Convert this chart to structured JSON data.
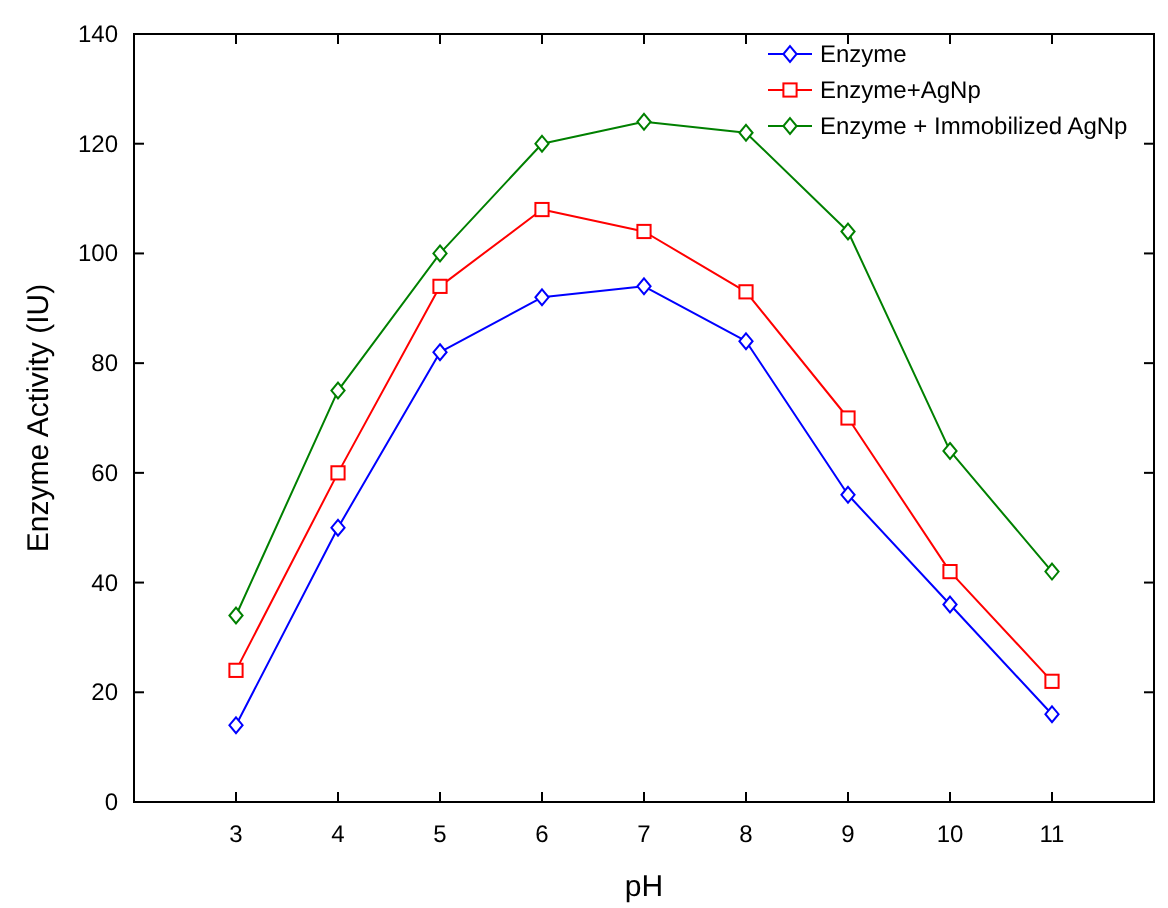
{
  "chart_data": {
    "type": "line",
    "xlabel": "pH",
    "ylabel": "Enzyme Activity (IU)",
    "x": [
      3,
      4,
      5,
      6,
      7,
      8,
      9,
      10,
      11
    ],
    "xlim": [
      2,
      12
    ],
    "xticks": [
      3,
      4,
      5,
      6,
      7,
      8,
      9,
      10,
      11
    ],
    "ylim": [
      0,
      140
    ],
    "yticks": [
      0,
      20,
      40,
      60,
      80,
      100,
      120,
      140
    ],
    "grid": false,
    "legend": "top right",
    "line_style": "solid",
    "series": [
      {
        "name": "Enzyme",
        "color": "#0000ff",
        "marker": "diamond",
        "values": [
          14,
          50,
          82,
          92,
          94,
          84,
          56,
          36,
          16
        ]
      },
      {
        "name": "Enzyme+AgNp",
        "color": "#ff0000",
        "marker": "square",
        "values": [
          24,
          60,
          94,
          108,
          104,
          93,
          70,
          42,
          22
        ]
      },
      {
        "name": "Enzyme + Immobilized AgNp",
        "color": "#008000",
        "marker": "diamond",
        "values": [
          34,
          75,
          100,
          120,
          124,
          122,
          104,
          64,
          42
        ]
      }
    ]
  }
}
